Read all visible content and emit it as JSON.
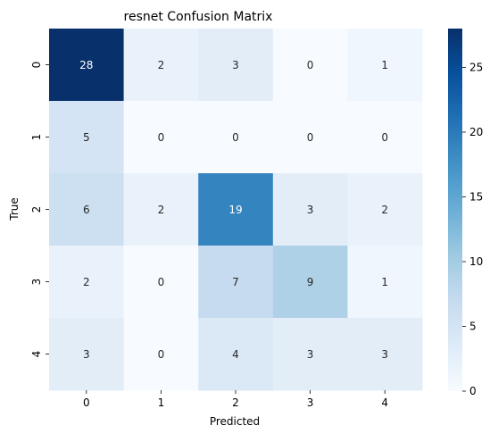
{
  "chart_data": {
    "type": "heatmap",
    "title": "resnet Confusion Matrix",
    "xlabel": "Predicted",
    "ylabel": "True",
    "x_categories": [
      "0",
      "1",
      "2",
      "3",
      "4"
    ],
    "y_categories": [
      "0",
      "1",
      "2",
      "3",
      "4"
    ],
    "values": [
      [
        28,
        2,
        3,
        0,
        1
      ],
      [
        5,
        0,
        0,
        0,
        0
      ],
      [
        6,
        2,
        19,
        3,
        2
      ],
      [
        2,
        0,
        7,
        9,
        1
      ],
      [
        3,
        0,
        4,
        3,
        3
      ]
    ],
    "colormap": "Blues",
    "vmin": 0,
    "vmax": 28,
    "colorbar_ticks": [
      0,
      5,
      10,
      15,
      20,
      25
    ],
    "grid": false
  }
}
